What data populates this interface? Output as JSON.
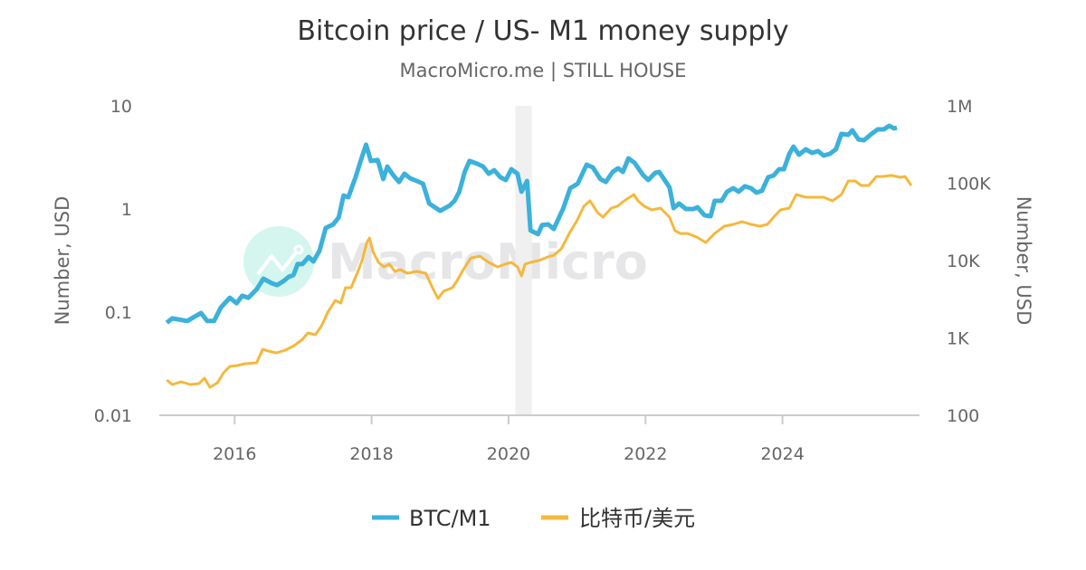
{
  "chart_data": {
    "type": "line",
    "title": "Bitcoin price / US- M1 money supply",
    "subtitle": "MacroMicro.me | STILL HOUSE",
    "watermark": "MacroMicro",
    "xlabel": "",
    "ylabel_left": "Number, USD",
    "ylabel_right": "Number, USD",
    "xlim": [
      2014.9,
      2026.0
    ],
    "x_ticks": [
      2016,
      2018,
      2020,
      2022,
      2024
    ],
    "x_tick_labels": [
      "2016",
      "2018",
      "2020",
      "2022",
      "2024"
    ],
    "y_left": {
      "scale": "log",
      "lim": [
        0.01,
        10
      ],
      "ticks": [
        0.01,
        0.1,
        1,
        10
      ],
      "tick_labels": [
        "0.01",
        "0.1",
        "1",
        "10"
      ]
    },
    "y_right": {
      "scale": "log",
      "lim": [
        100,
        1000000
      ],
      "ticks": [
        100,
        1000,
        10000,
        100000,
        1000000
      ],
      "tick_labels": [
        "100",
        "1K",
        "10K",
        "100K",
        "1M"
      ]
    },
    "shaded_band": [
      2020.1,
      2020.34
    ],
    "legend_position": "bottom",
    "series": [
      {
        "name": "BTC/M1",
        "axis": "left",
        "color": "#3CB1DA",
        "x": [
          2015.01,
          2015.09,
          2015.31,
          2015.41,
          2015.51,
          2015.6,
          2015.7,
          2015.8,
          2015.93,
          2016.03,
          2016.11,
          2016.2,
          2016.32,
          2016.42,
          2016.54,
          2016.62,
          2016.71,
          2016.79,
          2016.86,
          2016.92,
          2016.99,
          2017.08,
          2017.15,
          2017.24,
          2017.33,
          2017.44,
          2017.52,
          2017.59,
          2017.66,
          2017.77,
          2017.84,
          2017.92,
          2017.99,
          2018.09,
          2018.17,
          2018.23,
          2018.31,
          2018.4,
          2018.48,
          2018.56,
          2018.66,
          2018.75,
          2018.84,
          2019.0,
          2019.14,
          2019.21,
          2019.28,
          2019.36,
          2019.43,
          2019.54,
          2019.63,
          2019.71,
          2019.79,
          2019.88,
          2019.96,
          2020.04,
          2020.13,
          2020.19,
          2020.27,
          2020.32,
          2020.43,
          2020.49,
          2020.58,
          2020.66,
          2020.8,
          2020.9,
          2021.01,
          2021.14,
          2021.23,
          2021.34,
          2021.42,
          2021.52,
          2021.6,
          2021.67,
          2021.75,
          2021.84,
          2021.96,
          2022.04,
          2022.14,
          2022.2,
          2022.35,
          2022.41,
          2022.49,
          2022.59,
          2022.7,
          2022.76,
          2022.86,
          2022.95,
          2023.01,
          2023.11,
          2023.19,
          2023.28,
          2023.36,
          2023.45,
          2023.54,
          2023.62,
          2023.7,
          2023.79,
          2023.87,
          2023.95,
          2024.02,
          2024.1,
          2024.16,
          2024.24,
          2024.34,
          2024.43,
          2024.52,
          2024.6,
          2024.69,
          2024.78,
          2024.86,
          2024.96,
          2025.02,
          2025.11,
          2025.19,
          2025.3,
          2025.39,
          2025.48,
          2025.56,
          2025.63,
          2025.67
        ],
        "values": [
          0.079,
          0.087,
          0.082,
          0.09,
          0.098,
          0.082,
          0.082,
          0.111,
          0.138,
          0.122,
          0.144,
          0.138,
          0.166,
          0.211,
          0.191,
          0.183,
          0.199,
          0.22,
          0.229,
          0.292,
          0.292,
          0.343,
          0.31,
          0.395,
          0.654,
          0.71,
          0.83,
          1.35,
          1.3,
          2.07,
          2.92,
          4.2,
          2.92,
          2.98,
          1.95,
          2.58,
          2.15,
          1.83,
          2.2,
          1.99,
          1.87,
          1.76,
          1.13,
          0.96,
          1.08,
          1.2,
          1.47,
          2.29,
          2.92,
          2.75,
          2.58,
          2.2,
          2.38,
          2.03,
          1.91,
          2.43,
          2.2,
          1.47,
          1.87,
          0.62,
          0.57,
          0.7,
          0.71,
          0.64,
          1.02,
          1.59,
          1.76,
          2.69,
          2.53,
          1.95,
          1.83,
          2.29,
          2.48,
          2.29,
          3.1,
          2.8,
          2.15,
          1.91,
          2.24,
          2.29,
          1.62,
          1.02,
          1.13,
          1.0,
          1.0,
          1.04,
          0.87,
          0.85,
          1.2,
          1.2,
          1.47,
          1.59,
          1.47,
          1.66,
          1.59,
          1.44,
          1.5,
          2.03,
          2.11,
          2.43,
          2.43,
          3.43,
          4.03,
          3.36,
          3.79,
          3.5,
          3.64,
          3.29,
          3.43,
          3.79,
          5.35,
          5.24,
          5.8,
          4.73,
          4.64,
          5.35,
          5.91,
          5.91,
          6.41,
          6.04,
          6.15
        ]
      },
      {
        "name": "比特币/美元",
        "axis": "right",
        "color": "#F5B83D",
        "x": [
          2015.01,
          2015.09,
          2015.22,
          2015.35,
          2015.48,
          2015.56,
          2015.64,
          2015.75,
          2015.84,
          2015.93,
          2016.04,
          2016.15,
          2016.32,
          2016.41,
          2016.49,
          2016.61,
          2016.74,
          2016.87,
          2016.99,
          2017.07,
          2017.18,
          2017.27,
          2017.36,
          2017.47,
          2017.55,
          2017.62,
          2017.7,
          2017.8,
          2017.86,
          2017.93,
          2017.97,
          2018.02,
          2018.1,
          2018.18,
          2018.26,
          2018.34,
          2018.42,
          2018.52,
          2018.66,
          2018.79,
          2018.89,
          2018.97,
          2019.05,
          2019.18,
          2019.25,
          2019.34,
          2019.45,
          2019.58,
          2019.71,
          2019.84,
          2019.95,
          2020.04,
          2020.13,
          2020.19,
          2020.24,
          2020.32,
          2020.44,
          2020.57,
          2020.66,
          2020.77,
          2020.9,
          2020.99,
          2021.1,
          2021.19,
          2021.3,
          2021.38,
          2021.5,
          2021.59,
          2021.69,
          2021.83,
          2021.89,
          2021.98,
          2022.09,
          2022.22,
          2022.35,
          2022.43,
          2022.51,
          2022.62,
          2022.75,
          2022.88,
          2023.01,
          2023.15,
          2023.28,
          2023.41,
          2023.54,
          2023.67,
          2023.78,
          2023.87,
          2023.97,
          2024.1,
          2024.2,
          2024.34,
          2024.47,
          2024.6,
          2024.73,
          2024.86,
          2024.96,
          2025.06,
          2025.15,
          2025.26,
          2025.37,
          2025.46,
          2025.59,
          2025.72,
          2025.79,
          2025.88
        ],
        "values": [
          286,
          250,
          271,
          250,
          257,
          302,
          230,
          264,
          355,
          428,
          440,
          464,
          477,
          714,
          677,
          641,
          695,
          796,
          960,
          1160,
          1100,
          1440,
          2150,
          3060,
          2820,
          4460,
          4460,
          7240,
          10000,
          17100,
          19600,
          13100,
          9480,
          8280,
          8980,
          7240,
          7640,
          6860,
          7240,
          6860,
          4460,
          3230,
          4000,
          4460,
          5530,
          7640,
          10800,
          11400,
          9480,
          8280,
          8980,
          9480,
          8280,
          6330,
          8980,
          9480,
          10000,
          11100,
          11700,
          14200,
          23700,
          31800,
          50400,
          59200,
          41700,
          36400,
          47700,
          50400,
          59200,
          71400,
          59200,
          50400,
          45200,
          47700,
          36400,
          24300,
          22400,
          22400,
          20100,
          17100,
          22400,
          27800,
          29400,
          31800,
          29400,
          27800,
          29400,
          36400,
          45200,
          47700,
          71400,
          65900,
          65900,
          65900,
          59200,
          71400,
          107000,
          107000,
          93500,
          93500,
          122000,
          122000,
          126000,
          119000,
          122000,
          93500
        ]
      }
    ]
  }
}
